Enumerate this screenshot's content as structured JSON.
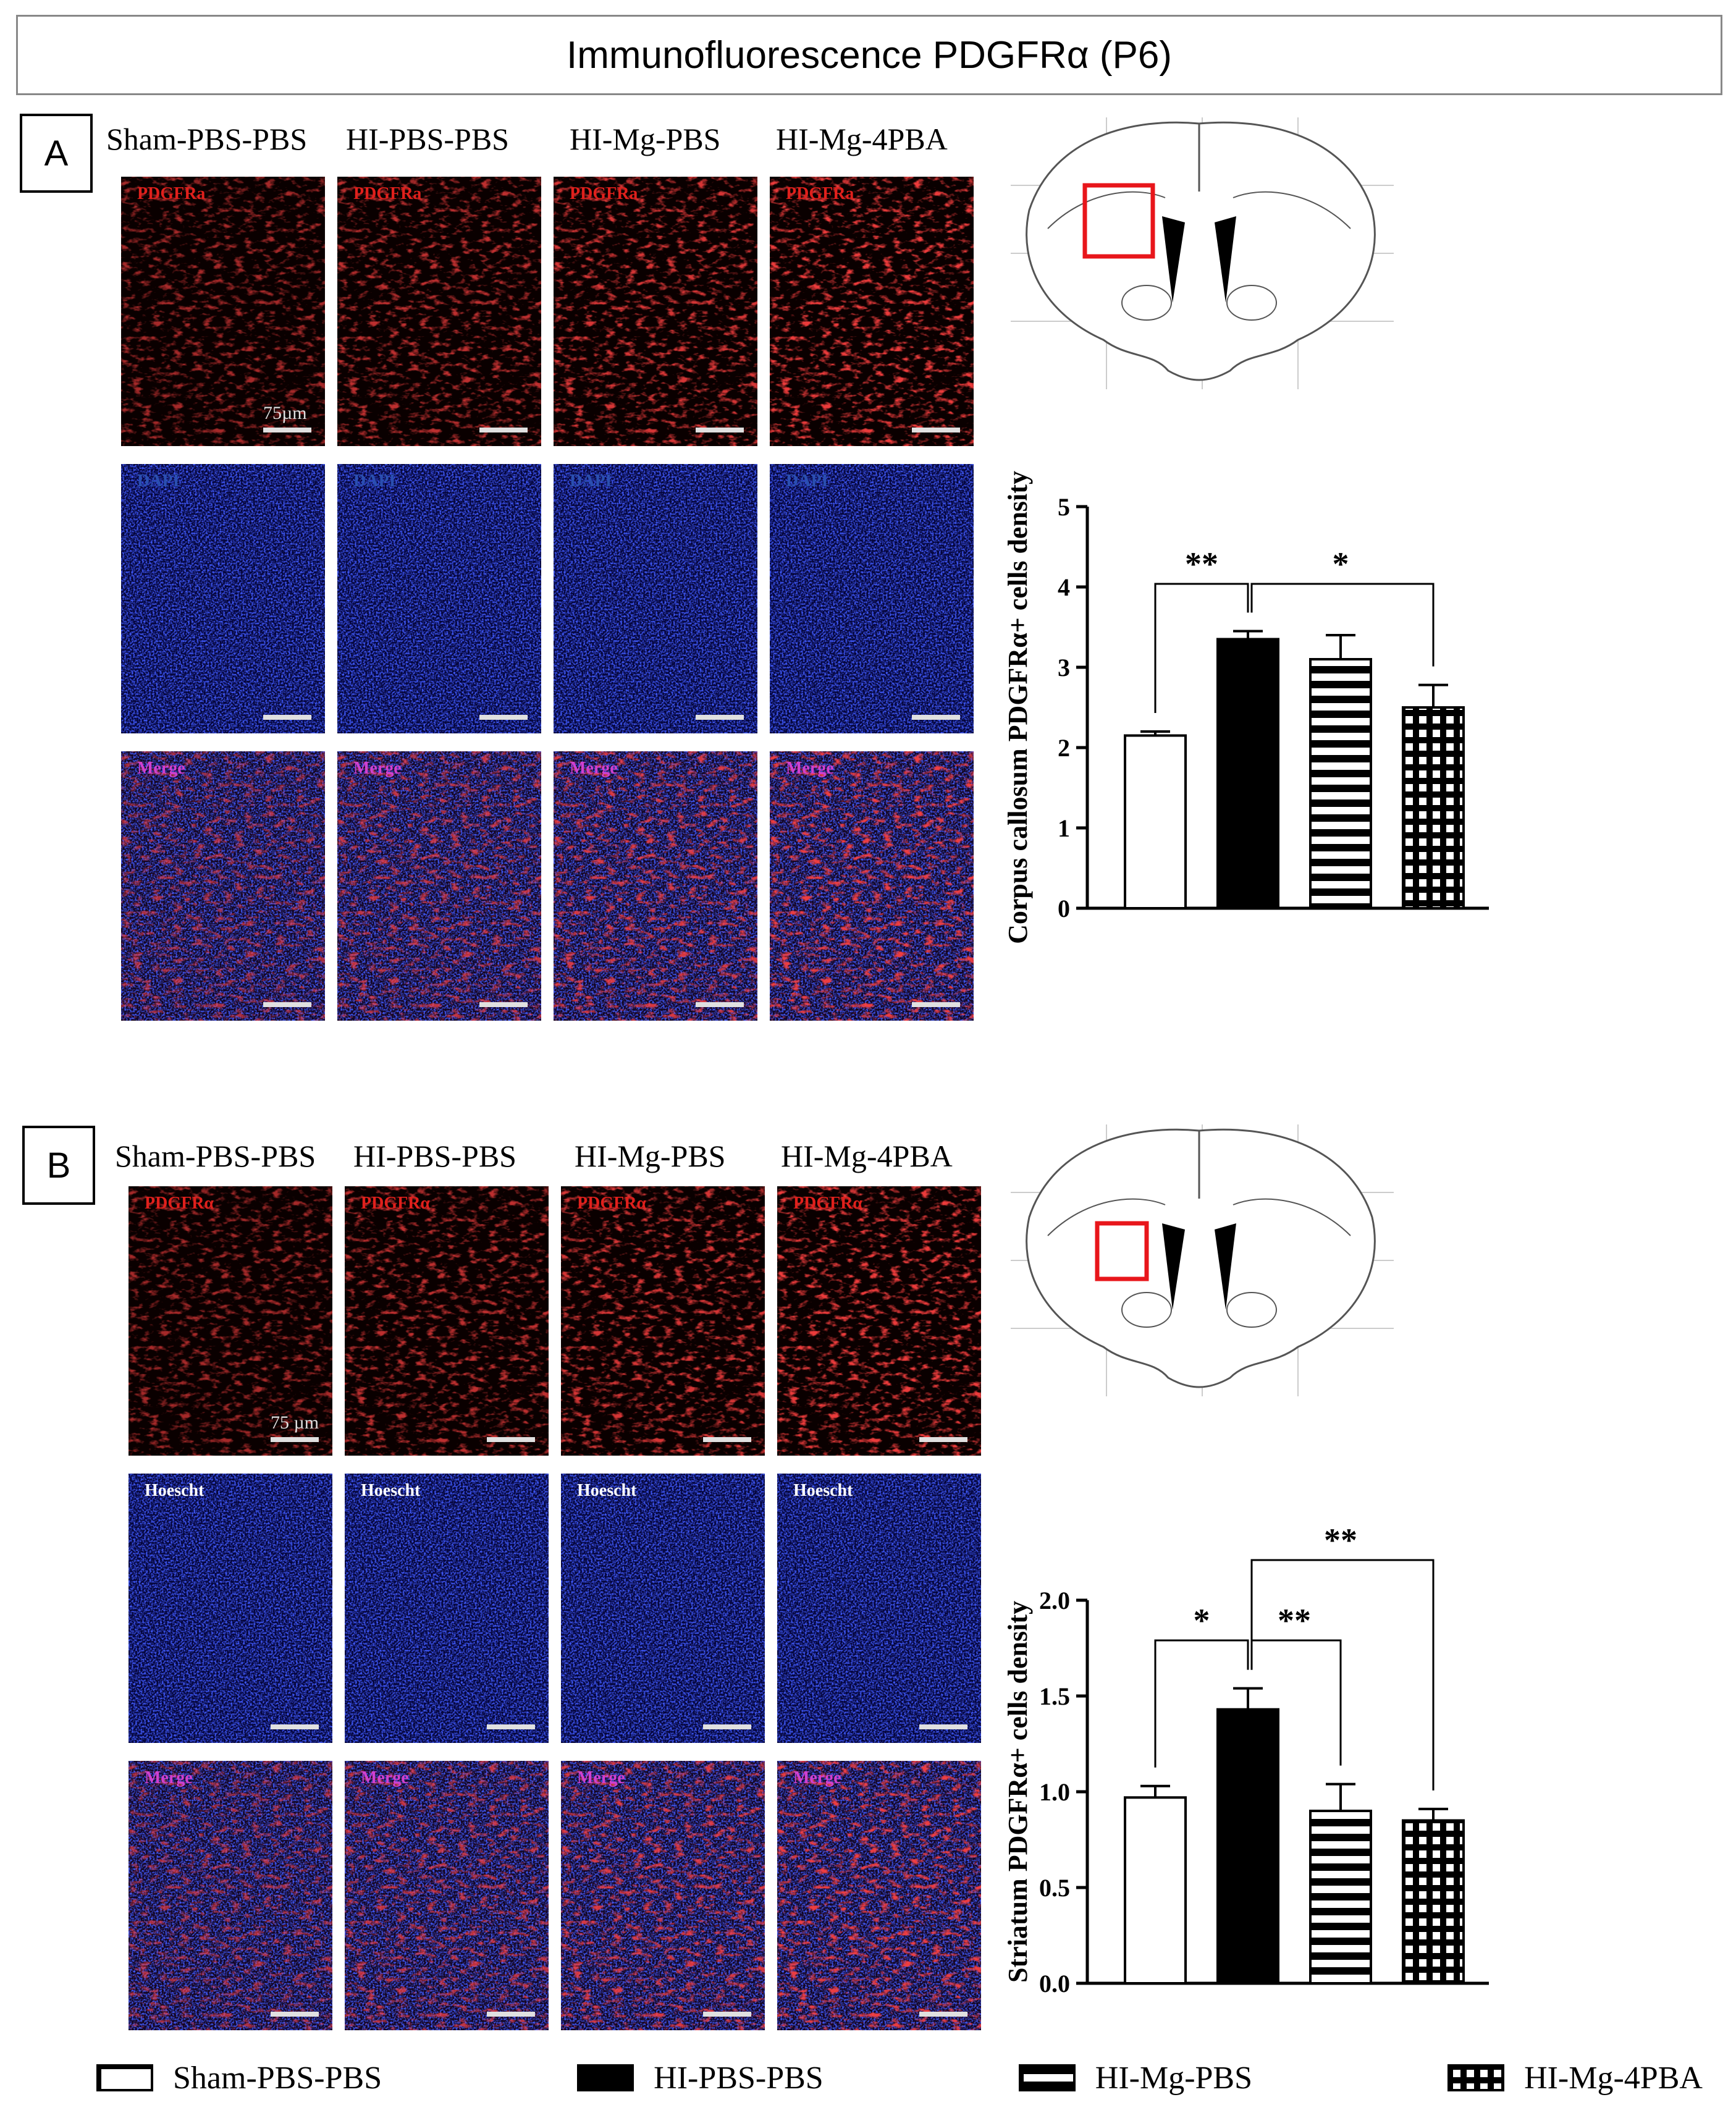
{
  "title": "Immunofluorescence PDGFRα (P6)",
  "panels": [
    {
      "letter": "A",
      "groups": [
        "Sham-PBS-PBS",
        "HI-PBS-PBS",
        "HI-Mg-PBS",
        "HI-Mg-4PBA"
      ],
      "rows": [
        {
          "label": "PDGFRa",
          "label_color": "#e0201c",
          "type": "red"
        },
        {
          "label": "DAPI",
          "label_color": "#2a4fb0",
          "type": "blue"
        },
        {
          "label": "Merge",
          "label_color": "#d040d0",
          "type": "merge"
        }
      ],
      "scale_text": "75µm"
    },
    {
      "letter": "B",
      "groups": [
        "Sham-PBS-PBS",
        "HI-PBS-PBS",
        "HI-Mg-PBS",
        "HI-Mg-4PBA"
      ],
      "rows": [
        {
          "label": "PDGFRα",
          "label_color": "#e0201c",
          "type": "red"
        },
        {
          "label": "Hoescht",
          "label_color": "#ffffff",
          "type": "blue"
        },
        {
          "label": "Merge",
          "label_color": "#d040d0",
          "type": "merge"
        }
      ],
      "scale_text": "75 µm"
    }
  ],
  "chart_data": [
    {
      "type": "bar",
      "categories": [
        "Sham-PBS-PBS",
        "HI-PBS-PBS",
        "HI-Mg-PBS",
        "HI-Mg-4PBA"
      ],
      "values": [
        2.15,
        3.35,
        3.1,
        2.5
      ],
      "errors": [
        0.05,
        0.1,
        0.3,
        0.28
      ],
      "ylabel": "Corpus callosum PDGFRα+ cells density",
      "ylim": [
        0,
        5
      ],
      "yticks": [
        "0",
        "1",
        "2",
        "3",
        "4",
        "5"
      ],
      "fills": [
        "white",
        "black",
        "hstripes",
        "grid"
      ],
      "significance": [
        {
          "from": 0,
          "to": 1,
          "label": "**"
        },
        {
          "from": 1,
          "to": 3,
          "label": "*"
        }
      ]
    },
    {
      "type": "bar",
      "categories": [
        "Sham-PBS-PBS",
        "HI-PBS-PBS",
        "HI-Mg-PBS",
        "HI-Mg-4PBA"
      ],
      "values": [
        0.97,
        1.43,
        0.9,
        0.85
      ],
      "errors": [
        0.06,
        0.11,
        0.14,
        0.06
      ],
      "ylabel": "Striatum PDGFRα+ cells density",
      "ylim": [
        0,
        2.0
      ],
      "yticks": [
        "0.0",
        "0.5",
        "1.0",
        "1.5",
        "2.0"
      ],
      "fills": [
        "white",
        "black",
        "hstripes",
        "grid"
      ],
      "significance": [
        {
          "from": 0,
          "to": 1,
          "label": "*"
        },
        {
          "from": 1,
          "to": 2,
          "label": "**"
        },
        {
          "from": 1,
          "to": 3,
          "label": "**"
        }
      ]
    }
  ],
  "legend": [
    {
      "label": "Sham-PBS-PBS",
      "fill": "white"
    },
    {
      "label": "HI-PBS-PBS",
      "fill": "black"
    },
    {
      "label": "HI-Mg-PBS",
      "fill": "hstripes"
    },
    {
      "label": "HI-Mg-4PBA",
      "fill": "grid"
    }
  ]
}
